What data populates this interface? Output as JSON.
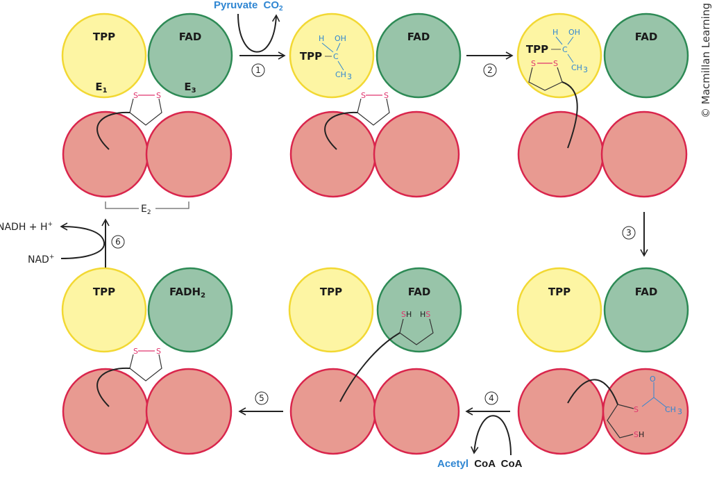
{
  "colors": {
    "e1_tpp": "#fdf5a3",
    "e3_fad": "#98c4a9",
    "e2": "#e89a91",
    "substrate_text": "#2f86d2",
    "sulfur": "#e0356e"
  },
  "labels": {
    "tpp": "TPP",
    "fad": "FAD",
    "fadh": "FADH",
    "two": "2",
    "e1": "E",
    "e1_sub": "1",
    "e3": "E",
    "e3_sub": "3",
    "e2": "E",
    "e2_sub": "2",
    "s": "S",
    "sh": "SH",
    "hs": "HS",
    "h": "H",
    "oh": "OH",
    "c": "C",
    "ch": "CH",
    "three": "3",
    "o": "O"
  },
  "substrates": {
    "pyruvate": "Pyruvate",
    "co2": "CO",
    "co2_sub": "2",
    "acetyl": "Acetyl",
    "coa": "CoA",
    "coa2": "CoA",
    "nadh": "NADH + H",
    "plus": "+",
    "nad": "NAD",
    "nad_plus": "+"
  },
  "steps": [
    "1",
    "2",
    "3",
    "4",
    "5",
    "6"
  ],
  "copyright": "© Macmillan Learning"
}
